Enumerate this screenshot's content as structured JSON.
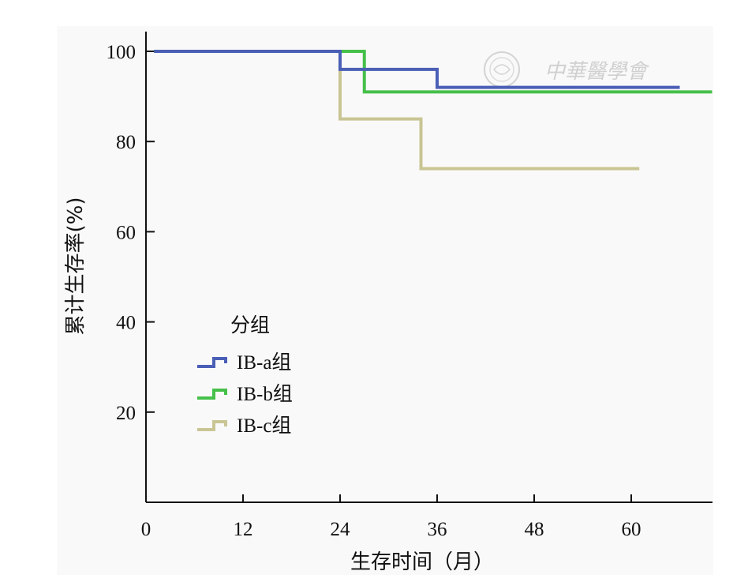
{
  "chart_data": {
    "type": "line",
    "step": true,
    "title": "",
    "xlabel": "生存时间（月）",
    "ylabel": "累计生存率(%)",
    "xlim": [
      0,
      70
    ],
    "ylim": [
      0,
      100
    ],
    "xticks": [
      0,
      12,
      24,
      36,
      48,
      60
    ],
    "yticks": [
      20,
      40,
      60,
      80,
      100
    ],
    "grid": false,
    "legend": {
      "title": "分组",
      "placement": "center-left"
    },
    "series": [
      {
        "name": "IB-a组",
        "color": "#4a5fb5",
        "x": [
          1,
          24,
          36,
          66
        ],
        "y": [
          100,
          96,
          92,
          92
        ]
      },
      {
        "name": "IB-b组",
        "color": "#46c04a",
        "x": [
          1,
          27,
          70
        ],
        "y": [
          100,
          91,
          91
        ]
      },
      {
        "name": "IB-c组",
        "color": "#c9c594",
        "x": [
          24,
          34,
          61
        ],
        "y": [
          85,
          74,
          74
        ],
        "start_y": 100
      }
    ]
  },
  "watermark": {
    "text": "中華醫學會",
    "icon": "seal-logo"
  }
}
